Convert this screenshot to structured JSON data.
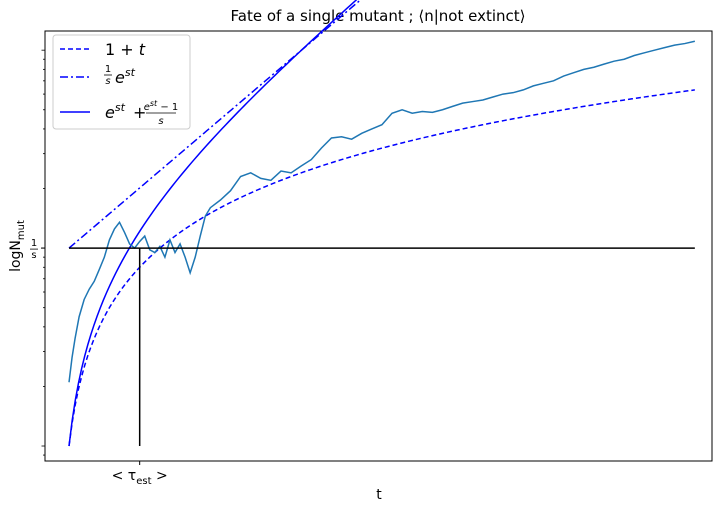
{
  "chart_data": {
    "type": "line",
    "title": "Fate of a single mutant ; ⟨n|not extinct⟩",
    "xlabel": "t",
    "ylabel": "logN_mut",
    "ylabel_main": "logN",
    "ylabel_sub": "mut",
    "log_y": true,
    "grid": false,
    "legend_position": "top-left",
    "s": 0.1,
    "xlim": [
      -2.38,
      63.7
    ],
    "ylim": [
      0.84,
      125
    ],
    "x_ticks": [
      {
        "value": 7.0,
        "label_main": "< τ",
        "label_sub": "est",
        "label_end": " >"
      }
    ],
    "y_ticks": [
      {
        "value": 10,
        "label_num": "1",
        "label_den": "s"
      }
    ],
    "reference_lines": [
      {
        "name": "horizontal-reference",
        "x": [
          0,
          62
        ],
        "y": [
          10,
          10
        ],
        "color": "#000000"
      },
      {
        "name": "vertical-reference",
        "x": [
          7.0,
          7.0
        ],
        "y": [
          1.0,
          10
        ],
        "color": "#000000"
      }
    ],
    "series": [
      {
        "key": "one_plus_t",
        "label_plain": "1+t",
        "style": "dashed",
        "color": "#0000ff"
      },
      {
        "key": "est_over_s",
        "label_plain": "(1/s) e^{st}",
        "style": "dashdot",
        "color": "#0000ff"
      },
      {
        "key": "est_plus",
        "label_plain": "e^{st} + (e^{st}-1)/s",
        "style": "solid",
        "color": "#0000ff"
      },
      {
        "key": "simulation",
        "style": "solid",
        "color": "#1f77b4",
        "x": [
          0,
          0.3,
          0.6,
          1,
          1.5,
          2,
          2.5,
          3,
          3.5,
          4,
          4.5,
          5,
          5.5,
          6,
          6.5,
          7,
          7.5,
          8,
          8.5,
          9,
          9.5,
          10,
          10.5,
          11,
          11.5,
          12,
          12.5,
          13,
          13.5,
          14,
          15,
          16,
          17,
          18,
          19,
          20,
          21,
          22,
          23,
          24,
          25,
          26,
          27,
          28,
          29,
          30,
          31,
          32,
          33,
          34,
          35,
          36,
          37,
          38,
          39,
          40,
          41,
          42,
          43,
          44,
          45,
          46,
          47,
          48,
          49,
          50,
          51,
          52,
          53,
          54,
          55,
          56,
          57,
          58,
          59,
          60,
          61,
          62
        ],
        "y": [
          2.1,
          2.8,
          3.5,
          4.5,
          5.5,
          6.2,
          6.8,
          7.8,
          9.0,
          11.0,
          12.5,
          13.5,
          12.0,
          10.5,
          10.0,
          10.8,
          11.5,
          9.8,
          9.5,
          10.2,
          9.0,
          11.0,
          9.5,
          10.5,
          9.0,
          7.5,
          9.0,
          11.5,
          14.5,
          16.0,
          17.5,
          19.5,
          23.0,
          24.0,
          22.5,
          22.0,
          24.5,
          24.0,
          26.0,
          28.0,
          32.0,
          36.0,
          36.5,
          35.5,
          38.0,
          40.0,
          42.0,
          48.0,
          50.0,
          48.0,
          49.0,
          48.5,
          50.0,
          52.0,
          54.0,
          55.0,
          56.0,
          58.0,
          60.0,
          61.0,
          63.0,
          66.0,
          68.0,
          70.0,
          74.0,
          77.0,
          80.0,
          82.0,
          85.0,
          88.0,
          90.0,
          94.0,
          97.0,
          100.0,
          103.0,
          106.0,
          108.0,
          111.0
        ]
      }
    ]
  }
}
